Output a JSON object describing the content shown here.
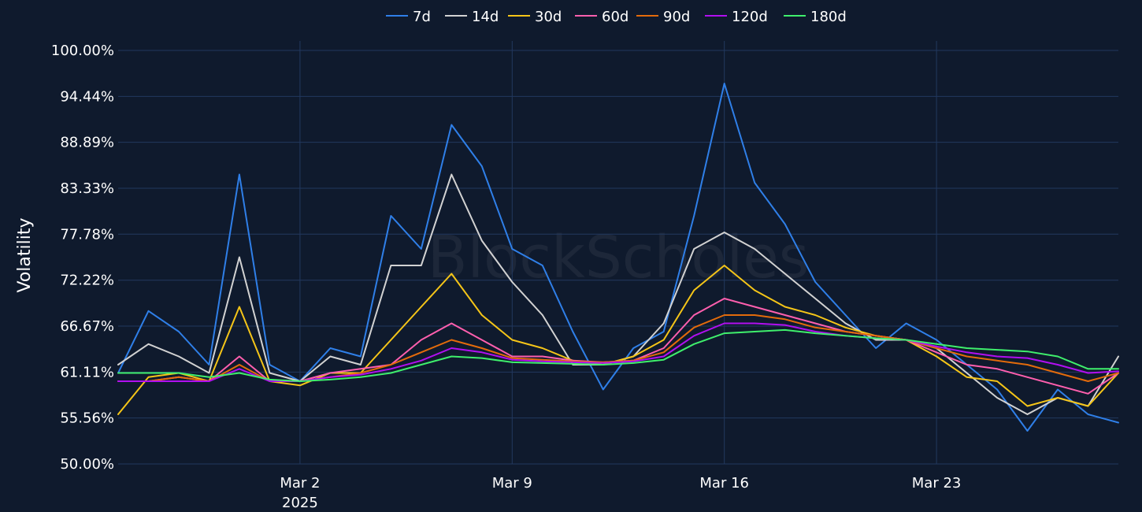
{
  "chart_data": {
    "type": "line",
    "watermark": "BlockScholes",
    "ylabel": "Volatility",
    "xlabel": "",
    "ylim": [
      50,
      100
    ],
    "y_ticks": [
      {
        "value": 100,
        "label": "100.00%"
      },
      {
        "value": 94.44,
        "label": "94.44%"
      },
      {
        "value": 88.89,
        "label": "88.89%"
      },
      {
        "value": 83.33,
        "label": "83.33%"
      },
      {
        "value": 77.78,
        "label": "77.78%"
      },
      {
        "value": 72.22,
        "label": "72.22%"
      },
      {
        "value": 66.67,
        "label": "66.67%"
      },
      {
        "value": 61.11,
        "label": "61.11%"
      },
      {
        "value": 55.56,
        "label": "55.56%"
      },
      {
        "value": 50,
        "label": "50.00%"
      }
    ],
    "x_range": [
      "2025-02-24",
      "2025-03-29"
    ],
    "x_ticks": [
      {
        "date": "2025-03-02",
        "label": "Mar 2",
        "sublabel": "2025"
      },
      {
        "date": "2025-03-09",
        "label": "Mar 9",
        "sublabel": ""
      },
      {
        "date": "2025-03-16",
        "label": "Mar 16",
        "sublabel": ""
      },
      {
        "date": "2025-03-23",
        "label": "Mar 23",
        "sublabel": ""
      }
    ],
    "grid": true,
    "legend_position": "top-center",
    "x": [
      "2025-02-24",
      "2025-02-25",
      "2025-02-26",
      "2025-02-27",
      "2025-02-28",
      "2025-03-01",
      "2025-03-02",
      "2025-03-03",
      "2025-03-04",
      "2025-03-05",
      "2025-03-06",
      "2025-03-07",
      "2025-03-08",
      "2025-03-09",
      "2025-03-10",
      "2025-03-11",
      "2025-03-12",
      "2025-03-13",
      "2025-03-14",
      "2025-03-15",
      "2025-03-16",
      "2025-03-17",
      "2025-03-18",
      "2025-03-19",
      "2025-03-20",
      "2025-03-21",
      "2025-03-22",
      "2025-03-23",
      "2025-03-24",
      "2025-03-25",
      "2025-03-26",
      "2025-03-27",
      "2025-03-28",
      "2025-03-29"
    ],
    "series": [
      {
        "name": "7d",
        "color": "#2f7fe8",
        "values": [
          61,
          68.5,
          66,
          62,
          85,
          62,
          60,
          64,
          63,
          80,
          76,
          91,
          86,
          76,
          74,
          66,
          59,
          64,
          66,
          80,
          96,
          84,
          79,
          72,
          68,
          64,
          67,
          65,
          62,
          59,
          54,
          59,
          56,
          55
        ]
      },
      {
        "name": "14d",
        "color": "#d2d2d2",
        "values": [
          62,
          64.5,
          63,
          61,
          75,
          61,
          60,
          63,
          62,
          74,
          74,
          85,
          77,
          72,
          68,
          62,
          62,
          63,
          67,
          76,
          78,
          76,
          73,
          70,
          67,
          65,
          65,
          64,
          61,
          58,
          56,
          58,
          57,
          63
        ]
      },
      {
        "name": "30d",
        "color": "#f5c518",
        "values": [
          56,
          60.5,
          61,
          60,
          69,
          60,
          59.5,
          61,
          61,
          65,
          69,
          73,
          68,
          65,
          64,
          62.5,
          62,
          63,
          65,
          71,
          74,
          71,
          69,
          68,
          66.5,
          65.5,
          65,
          63,
          60.5,
          60,
          57,
          58,
          57,
          61
        ]
      },
      {
        "name": "60d",
        "color": "#ff5fae",
        "values": [
          60,
          60,
          60.5,
          60,
          63,
          60,
          60,
          61,
          61.5,
          62,
          65,
          67,
          65,
          63,
          63,
          62.5,
          62.3,
          62.5,
          64,
          68,
          70,
          69,
          68,
          67,
          66,
          65.5,
          65,
          63.5,
          62,
          61.5,
          60.5,
          59.5,
          58.5,
          61
        ]
      },
      {
        "name": "90d",
        "color": "#e36b0b",
        "values": [
          60,
          60,
          60.5,
          60,
          62,
          60,
          60,
          60.5,
          61,
          62,
          63.5,
          65,
          64,
          62.8,
          62.6,
          62.4,
          62.3,
          62.5,
          63.5,
          66.5,
          68,
          68,
          67.5,
          66.5,
          66,
          65.5,
          65,
          64,
          63,
          62.5,
          62,
          61,
          60,
          61
        ]
      },
      {
        "name": "120d",
        "color": "#b10ff0",
        "values": [
          60,
          60,
          60,
          60,
          61.5,
          60,
          60,
          60.5,
          60.8,
          61.5,
          62.5,
          64,
          63.5,
          62.6,
          62.4,
          62.3,
          62.2,
          62.4,
          63,
          65.5,
          67,
          67,
          66.8,
          66,
          65.5,
          65.2,
          65,
          64.2,
          63.5,
          63,
          62.8,
          62,
          61,
          61.2
        ]
      },
      {
        "name": "180d",
        "color": "#3fef6c",
        "values": [
          61,
          61,
          61,
          60.5,
          61,
          60.2,
          60,
          60.2,
          60.5,
          61,
          62,
          63,
          62.8,
          62.3,
          62.2,
          62.1,
          62,
          62.2,
          62.6,
          64.5,
          65.8,
          66,
          66.2,
          65.8,
          65.5,
          65.2,
          65,
          64.5,
          64,
          63.8,
          63.6,
          63,
          61.5,
          61.5
        ]
      }
    ]
  }
}
